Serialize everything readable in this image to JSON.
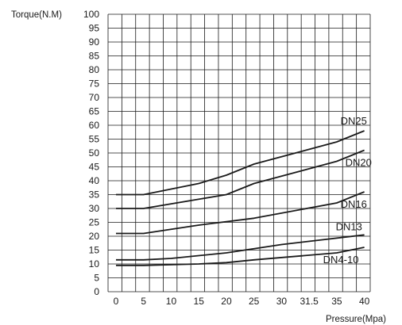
{
  "chart_data": {
    "type": "line",
    "xlabel": "Pressure(Mpa)",
    "ylabel": "Torque(N.M)",
    "x_ticks": [
      "0",
      "5",
      "10",
      "15",
      "20",
      "25",
      "30",
      "31.5",
      "35",
      "40"
    ],
    "y_ticks": [
      0,
      5,
      10,
      15,
      20,
      25,
      30,
      35,
      40,
      45,
      50,
      55,
      60,
      65,
      70,
      75,
      80,
      85,
      90,
      95,
      100
    ],
    "ylim": [
      0,
      100
    ],
    "grid": true,
    "series": [
      {
        "name": "DN25",
        "points": [
          {
            "x": "0",
            "y": 35
          },
          {
            "x": "5",
            "y": 35
          },
          {
            "x": "15",
            "y": 39
          },
          {
            "x": "20",
            "y": 42
          },
          {
            "x": "25",
            "y": 46
          },
          {
            "x": "35",
            "y": 54
          },
          {
            "x": "40",
            "y": 58
          }
        ]
      },
      {
        "name": "DN20",
        "points": [
          {
            "x": "0",
            "y": 30
          },
          {
            "x": "5",
            "y": 30
          },
          {
            "x": "20",
            "y": 35
          },
          {
            "x": "25",
            "y": 39
          },
          {
            "x": "35",
            "y": 47
          },
          {
            "x": "40",
            "y": 51
          }
        ]
      },
      {
        "name": "DN16",
        "points": [
          {
            "x": "0",
            "y": 21
          },
          {
            "x": "5",
            "y": 21
          },
          {
            "x": "15",
            "y": 24
          },
          {
            "x": "25",
            "y": 26.5
          },
          {
            "x": "35",
            "y": 32
          },
          {
            "x": "40",
            "y": 36
          }
        ]
      },
      {
        "name": "DN13",
        "points": [
          {
            "x": "0",
            "y": 11.5
          },
          {
            "x": "5",
            "y": 11.5
          },
          {
            "x": "10",
            "y": 12
          },
          {
            "x": "20",
            "y": 14
          },
          {
            "x": "30",
            "y": 17
          },
          {
            "x": "40",
            "y": 20.5
          }
        ]
      },
      {
        "name": "DN4-10",
        "points": [
          {
            "x": "0",
            "y": 9.5
          },
          {
            "x": "5",
            "y": 9.5
          },
          {
            "x": "15",
            "y": 10
          },
          {
            "x": "20",
            "y": 10.5
          },
          {
            "x": "25",
            "y": 11.5
          },
          {
            "x": "35",
            "y": 14
          },
          {
            "x": "40",
            "y": 16
          }
        ]
      }
    ]
  }
}
